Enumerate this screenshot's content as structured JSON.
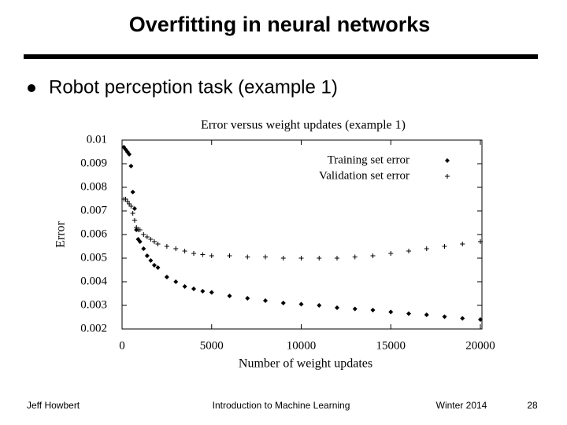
{
  "slide": {
    "title": "Overfitting in neural networks",
    "bullet": "Robot perception task (example 1)",
    "footer": {
      "author": "Jeff Howbert",
      "course": "Introduction to Machine Learning",
      "term": "Winter 2014",
      "page": "28"
    }
  },
  "chart_data": {
    "type": "scatter",
    "title": "Error versus weight updates (example 1)",
    "x_label": "Number of weight updates",
    "y_label": "Error",
    "x": [
      100,
      200,
      300,
      400,
      500,
      600,
      700,
      800,
      900,
      1000,
      1200,
      1400,
      1600,
      1800,
      2000,
      2500,
      3000,
      3500,
      4000,
      4500,
      5000,
      6000,
      7000,
      8000,
      9000,
      10000,
      11000,
      12000,
      13000,
      14000,
      15000,
      16000,
      17000,
      18000,
      19000,
      20000
    ],
    "series": [
      {
        "name": "Training set error",
        "color": "#000000",
        "marker": "diamond",
        "values": [
          0.0097,
          0.0096,
          0.0095,
          0.0094,
          0.0089,
          0.0078,
          0.0071,
          0.0062,
          0.0058,
          0.0057,
          0.0054,
          0.0051,
          0.0049,
          0.0047,
          0.0046,
          0.0042,
          0.004,
          0.0038,
          0.0037,
          0.0036,
          0.00355,
          0.0034,
          0.0033,
          0.0032,
          0.0031,
          0.00305,
          0.003,
          0.0029,
          0.00285,
          0.0028,
          0.00272,
          0.00265,
          0.0026,
          0.00252,
          0.00245,
          0.0024
        ]
      },
      {
        "name": "Validation set error",
        "color": "#000000",
        "marker": "plus",
        "values": [
          0.0075,
          0.0075,
          0.0074,
          0.0073,
          0.0072,
          0.0069,
          0.0066,
          0.0063,
          0.0062,
          0.0062,
          0.006,
          0.0059,
          0.0058,
          0.0057,
          0.0056,
          0.0055,
          0.0054,
          0.0053,
          0.0052,
          0.00515,
          0.0051,
          0.0051,
          0.00505,
          0.00505,
          0.005,
          0.005,
          0.005,
          0.005,
          0.00505,
          0.0051,
          0.0052,
          0.0053,
          0.0054,
          0.0055,
          0.0056,
          0.0057
        ]
      }
    ],
    "xlim": [
      0,
      20000
    ],
    "xticks": [
      0,
      5000,
      10000,
      15000,
      20000
    ],
    "ylim": [
      0.002,
      0.01
    ],
    "yticks": [
      0.002,
      0.003,
      0.004,
      0.005,
      0.006,
      0.007,
      0.008,
      0.009,
      0.01
    ],
    "grid": false,
    "legend": "upper-right"
  }
}
